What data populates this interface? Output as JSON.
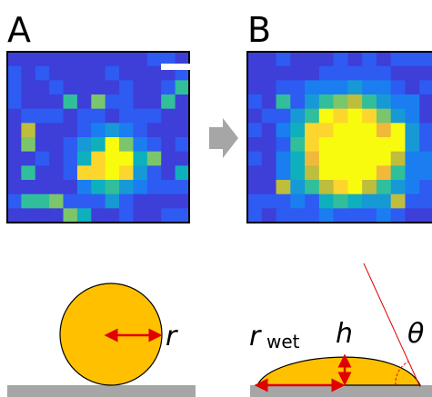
{
  "panels": [
    {
      "label": "A"
    },
    {
      "label": "B"
    }
  ],
  "schematic": {
    "drop_radius": "r",
    "wet_radius": "r",
    "wet_subscript": "wet",
    "height": "h",
    "angle": "θ"
  }
}
